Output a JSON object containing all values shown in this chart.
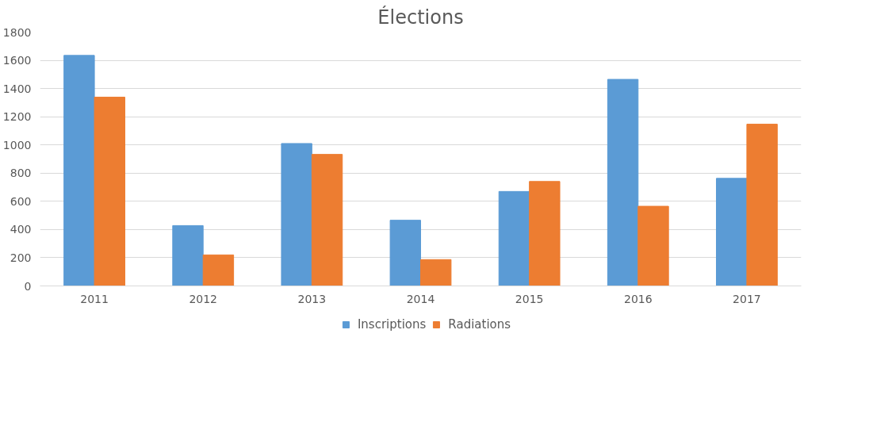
{
  "chart_data": {
    "type": "bar",
    "title": "Élections",
    "categories": [
      "2011",
      "2012",
      "2013",
      "2014",
      "2015",
      "2016",
      "2017"
    ],
    "series": [
      {
        "name": "Inscriptions",
        "color": "#5b9bd5",
        "values": [
          1635,
          428,
          1010,
          466,
          670,
          1465,
          763
        ]
      },
      {
        "name": "Radiations",
        "color": "#ed7d31",
        "values": [
          1339,
          220,
          933,
          187,
          741,
          565,
          1147
        ]
      }
    ],
    "ylim": [
      0,
      1800
    ],
    "yticks": [
      0,
      200,
      400,
      600,
      800,
      1000,
      1200,
      1400,
      1600,
      1800
    ],
    "grid": "y",
    "legend": "bottom"
  }
}
